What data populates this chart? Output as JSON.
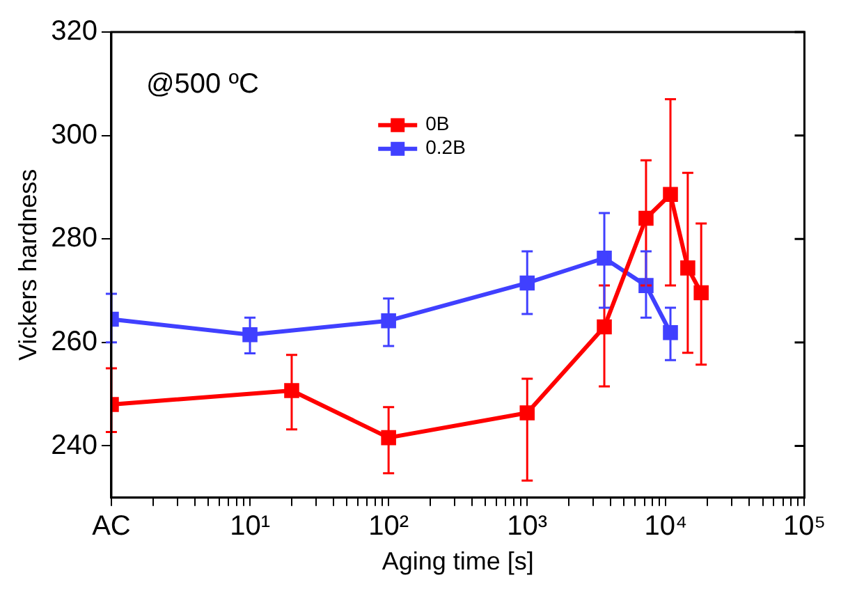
{
  "chart_data": {
    "type": "line",
    "xlabel": "Aging time [s]",
    "ylabel": "Vickers hardness",
    "annotations": [
      "@500 ºC"
    ],
    "log": "x",
    "xlim": [
      1,
      100000
    ],
    "ylim": [
      230,
      320
    ],
    "xticks": [
      {
        "value": 1,
        "label": "AC"
      },
      {
        "value": 2,
        "label": null
      },
      {
        "value": 3,
        "label": null
      },
      {
        "value": 4,
        "label": null
      },
      {
        "value": 5,
        "label": null
      },
      {
        "value": 6,
        "label": null
      },
      {
        "value": 7,
        "label": null
      },
      {
        "value": 8,
        "label": null
      },
      {
        "value": 9,
        "label": null
      },
      {
        "value": 10,
        "label": "10¹"
      },
      {
        "value": 20,
        "label": null
      },
      {
        "value": 30,
        "label": null
      },
      {
        "value": 40,
        "label": null
      },
      {
        "value": 50,
        "label": null
      },
      {
        "value": 60,
        "label": null
      },
      {
        "value": 70,
        "label": null
      },
      {
        "value": 80,
        "label": null
      },
      {
        "value": 90,
        "label": null
      },
      {
        "value": 100,
        "label": "10²"
      },
      {
        "value": 200,
        "label": null
      },
      {
        "value": 300,
        "label": null
      },
      {
        "value": 400,
        "label": null
      },
      {
        "value": 500,
        "label": null
      },
      {
        "value": 600,
        "label": null
      },
      {
        "value": 700,
        "label": null
      },
      {
        "value": 800,
        "label": null
      },
      {
        "value": 900,
        "label": null
      },
      {
        "value": 1000,
        "label": "10³"
      },
      {
        "value": 2000,
        "label": null
      },
      {
        "value": 3000,
        "label": null
      },
      {
        "value": 4000,
        "label": null
      },
      {
        "value": 5000,
        "label": null
      },
      {
        "value": 6000,
        "label": null
      },
      {
        "value": 7000,
        "label": null
      },
      {
        "value": 8000,
        "label": null
      },
      {
        "value": 9000,
        "label": null
      },
      {
        "value": 10000,
        "label": "10⁴"
      },
      {
        "value": 20000,
        "label": null
      },
      {
        "value": 30000,
        "label": null
      },
      {
        "value": 40000,
        "label": null
      },
      {
        "value": 50000,
        "label": null
      },
      {
        "value": 60000,
        "label": null
      },
      {
        "value": 70000,
        "label": null
      },
      {
        "value": 80000,
        "label": null
      },
      {
        "value": 90000,
        "label": null
      },
      {
        "value": 100000,
        "label": "10⁵"
      }
    ],
    "yticks": [
      240,
      260,
      280,
      300,
      320
    ],
    "grid": false,
    "legend": "top",
    "marker": "square",
    "line_style": "solid",
    "series": [
      {
        "name": "0B",
        "color": "#ff0000",
        "x": [
          1,
          20,
          100,
          1000,
          3600,
          7200,
          10800,
          14400,
          18000
        ],
        "values": [
          248,
          250.7,
          241.6,
          246.4,
          263,
          284,
          288.6,
          274.4,
          269.6
        ],
        "errors": [
          [
            242.7,
            255
          ],
          [
            243.2,
            257.6
          ],
          [
            234.7,
            247.5
          ],
          [
            233.3,
            253
          ],
          [
            251.5,
            271
          ],
          [
            271,
            295.2
          ],
          [
            271,
            307
          ],
          [
            258,
            292.8
          ],
          [
            255.7,
            283
          ]
        ]
      },
      {
        "name": "0.2B",
        "color": "#4040ff",
        "x": [
          1,
          10,
          100,
          1000,
          3600,
          7200,
          10800
        ],
        "values": [
          264.5,
          261.5,
          264.2,
          271.5,
          276.3,
          271,
          261.9
        ],
        "errors": [
          [
            260,
            269.4
          ],
          [
            257.9,
            264.8
          ],
          [
            259.3,
            268.5
          ],
          [
            265.5,
            277.6
          ],
          [
            266.7,
            285
          ],
          [
            264.8,
            277.6
          ],
          [
            256.6,
            266.7
          ]
        ]
      }
    ]
  }
}
